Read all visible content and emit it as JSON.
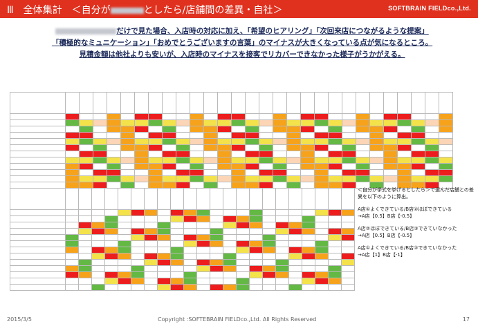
{
  "header": {
    "title_prefix": "Ⅲ　全体集計　＜自分が",
    "title_suffix": "としたら/店舗間の差異・自社＞",
    "brand": "SOFTBRAIN FIELDco.,Ltd."
  },
  "summary": {
    "line1": "だけで見た場合、入店時の対応に加え、「希望のヒアリング」「次回来店につながるような提案」",
    "line2": "「積極的なミュニケーション」「おめでとうございますの言葉」のマイナスが大きくなっている点が気になるところ。",
    "line3": "見積金額は他社よりも安いが、入店時のマイナスを接客でリカバーできなかった様子がうかがえる。"
  },
  "note": {
    "intro": "＜自分が挙式を挙げるとしたら＞で選んだ店舗との差異を以下のように算出。",
    "case1_a": "A店①よくできている/B店②ほぼできている",
    "case1_b": "→A店【0.5】B店【-0.5】",
    "case2_a": "A店②ほぼできている/B店③できていなかった",
    "case2_b": "→A店【0.5】B店【-0.5】",
    "case3_a": "A店①よくできている/B店③できていなかった",
    "case3_b": "→A店【1】B店【-1】"
  },
  "footer": {
    "date": "2015/3/5",
    "copyright": "Copyright :SOFTEBRAIN FIELDco.,Ltd. All Rights Reserved",
    "page": "17"
  },
  "colors": {
    "header_red": "#e0301e",
    "cell_red": "#ee1d1d",
    "cell_orange": "#f7a21b",
    "cell_yellow": "#f4e24a",
    "cell_green": "#63b944"
  }
}
